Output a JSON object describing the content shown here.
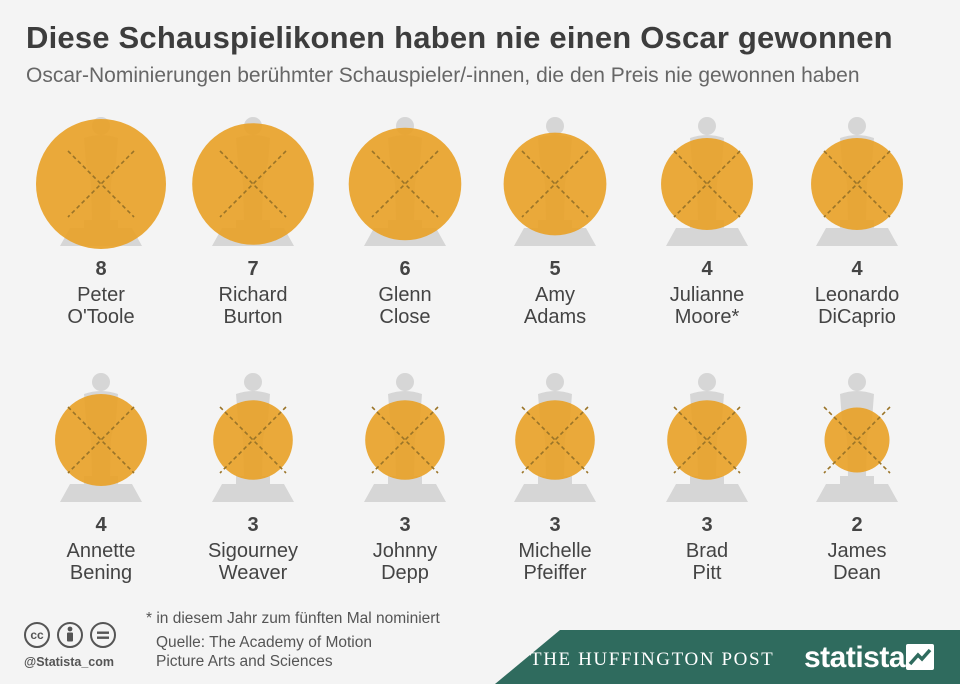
{
  "header": {
    "title": "Diese Schauspielikonen haben nie einen Oscar gewonnen",
    "subtitle": "Oscar-Nominierungen berühmter Schauspieler/-innen, die den Preis nie gewonnen haben"
  },
  "chart_data": {
    "type": "bubble",
    "title": "Diese Schauspielikonen haben nie einen Oscar gewonnen",
    "subtitle": "Oscar-Nominierungen berühmter Schauspieler/-innen, die den Preis nie gewonnen haben",
    "actors": [
      {
        "count": "8",
        "value": 8,
        "line1": "Peter",
        "line2": "O'Toole"
      },
      {
        "count": "7",
        "value": 7,
        "line1": "Richard",
        "line2": "Burton"
      },
      {
        "count": "6",
        "value": 6,
        "line1": "Glenn",
        "line2": "Close"
      },
      {
        "count": "5",
        "value": 5,
        "line1": "Amy",
        "line2": "Adams"
      },
      {
        "count": "4",
        "value": 4,
        "line1": "Julianne",
        "line2": "Moore*"
      },
      {
        "count": "4",
        "value": 4,
        "line1": "Leonardo",
        "line2": "DiCaprio"
      },
      {
        "count": "4",
        "value": 4,
        "line1": "Annette",
        "line2": "Bening"
      },
      {
        "count": "3",
        "value": 3,
        "line1": "Sigourney",
        "line2": "Weaver"
      },
      {
        "count": "3",
        "value": 3,
        "line1": "Johnny",
        "line2": "Depp"
      },
      {
        "count": "3",
        "value": 3,
        "line1": "Michelle",
        "line2": "Pfeiffer"
      },
      {
        "count": "3",
        "value": 3,
        "line1": "Brad",
        "line2": "Pitt"
      },
      {
        "count": "2",
        "value": 2,
        "line1": "James",
        "line2": "Dean"
      }
    ],
    "colors": {
      "bubble": "#e8a22b",
      "statue": "#d6d6d6",
      "cross": "#9a7428"
    }
  },
  "footer": {
    "footnote": "* in diesem Jahr zum fünften Mal nominiert",
    "source_line1": "Quelle: The Academy of Motion",
    "source_line2": "Picture Arts and Sciences",
    "handle": "@Statista_com",
    "partner": "THE HUFFINGTON POST",
    "brand": "statista",
    "band_color": "#2f6b5e",
    "icons": [
      "cc-icon",
      "by-icon",
      "equal-icon"
    ]
  }
}
